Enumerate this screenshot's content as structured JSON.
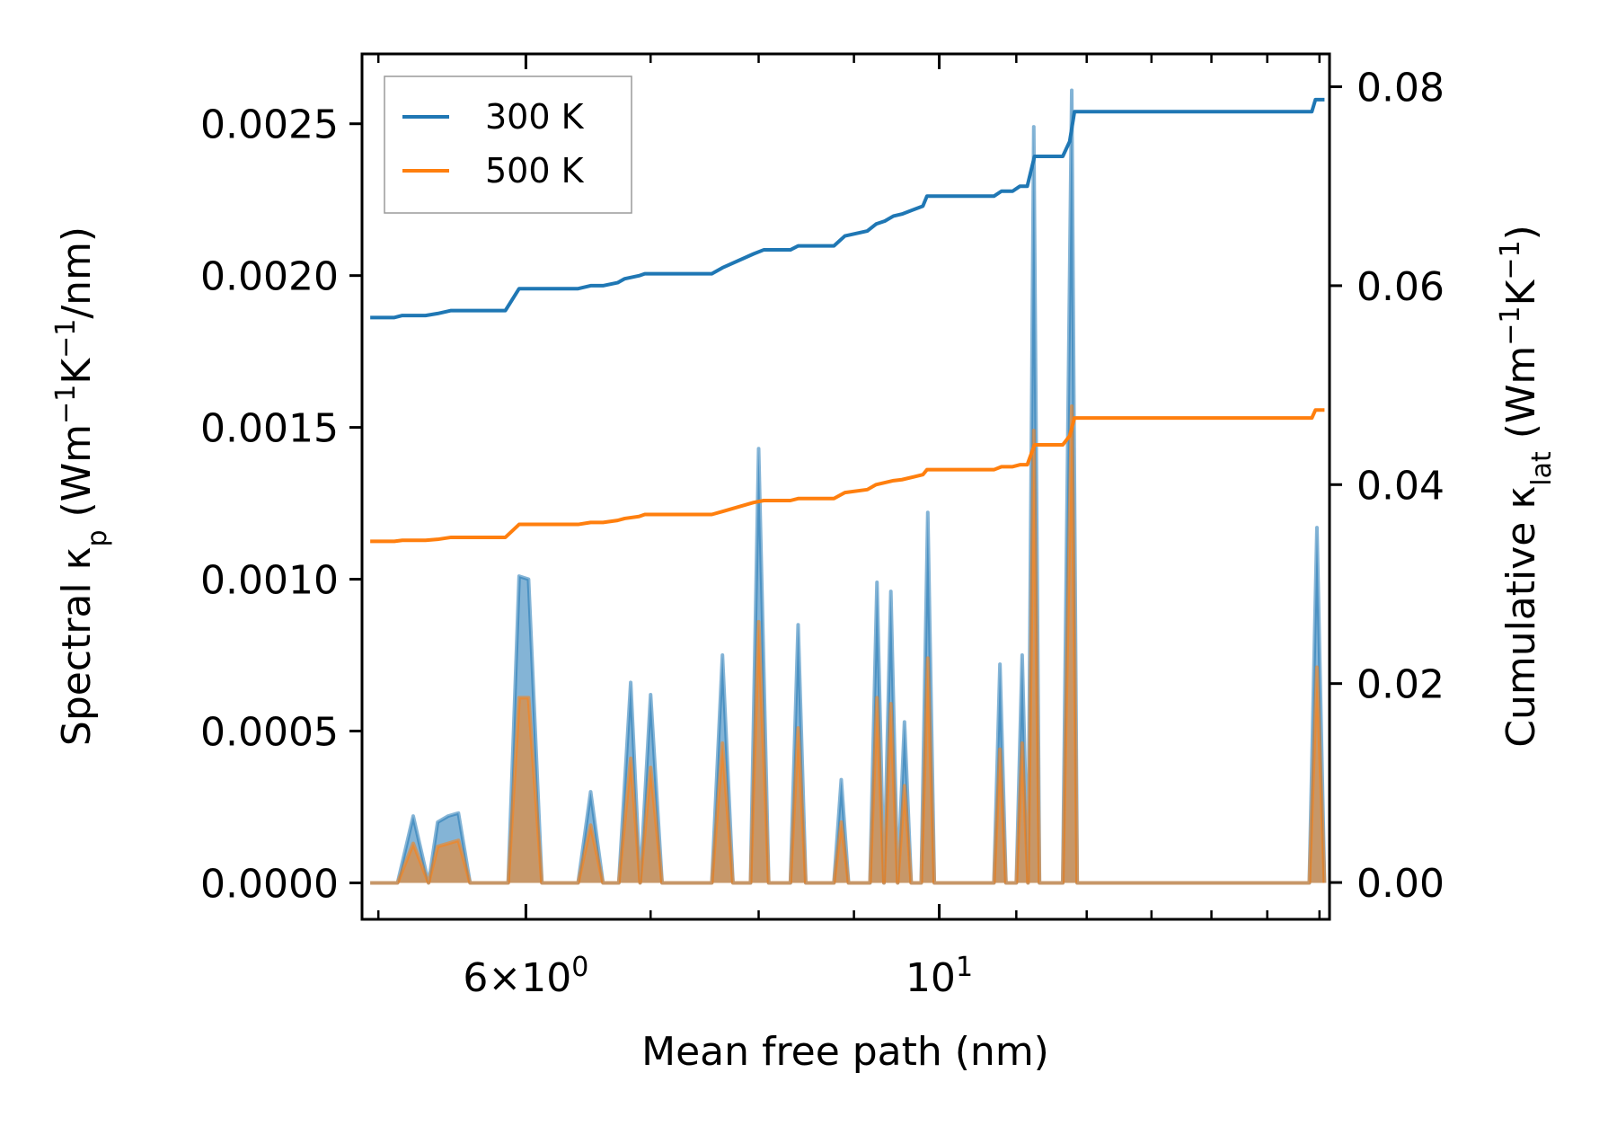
{
  "chart_data": {
    "type": "line",
    "title": "",
    "xlabel": "Mean free path (nm)",
    "xscale": "log",
    "xlim": [
      4.9,
      16.2
    ],
    "x_ticks": [
      {
        "value": 6,
        "base": "6",
        "mult": "×",
        "mant": "10",
        "exp": "0"
      },
      {
        "value": 10,
        "base": "",
        "mult": "",
        "mant": "10",
        "exp": "1"
      }
    ],
    "minor_x_ticks": [
      5,
      7,
      8,
      9,
      11,
      12,
      13,
      14,
      15,
      16
    ],
    "y_left": {
      "label_parts": [
        "Spectral κ",
        "p",
        " (Wm",
        "−1",
        "K",
        "−1",
        "/nm)"
      ],
      "ylim": [
        -0.00012,
        0.00273
      ],
      "ticks": [
        0.0,
        0.0005,
        0.001,
        0.0015,
        0.002,
        0.0025
      ],
      "tick_labels": [
        "0.0000",
        "0.0005",
        "0.0010",
        "0.0015",
        "0.0020",
        "0.0025"
      ]
    },
    "y_right": {
      "label_parts": [
        "Cumulative κ",
        "lat",
        " (Wm",
        "−1",
        "K",
        "−1",
        ")"
      ],
      "ylim": [
        -0.0037,
        0.0833
      ],
      "ticks": [
        0.0,
        0.02,
        0.04,
        0.06,
        0.08
      ],
      "tick_labels": [
        "0.00",
        "0.02",
        "0.04",
        "0.06",
        "0.08"
      ]
    },
    "legend": {
      "position": "top-left",
      "entries": [
        {
          "label": "300 K",
          "color": "#1f77b4"
        },
        {
          "label": "500 K",
          "color": "#ff7f0e"
        }
      ]
    },
    "spectral_series": [
      {
        "name": "300 K",
        "color": "#1f77b4",
        "axis": "left",
        "fill": true,
        "x": [
          4.95,
          5.12,
          5.22,
          5.32,
          5.38,
          5.45,
          5.52,
          5.6,
          5.87,
          5.95,
          6.02,
          6.12,
          6.4,
          6.5,
          6.6,
          6.73,
          6.83,
          6.91,
          7.0,
          7.1,
          7.55,
          7.65,
          7.75,
          7.92,
          8.0,
          8.1,
          8.32,
          8.4,
          8.48,
          8.78,
          8.86,
          8.94,
          9.18,
          9.26,
          9.34,
          9.42,
          9.5,
          9.58,
          9.66,
          9.78,
          9.86,
          9.94,
          10.02,
          10.7,
          10.78,
          10.86,
          11.0,
          11.08,
          11.16,
          11.24,
          11.32,
          11.65,
          11.78,
          11.86,
          11.94,
          12.05,
          15.8,
          15.95,
          16.1
        ],
        "y": [
          0.0,
          0.0,
          0.00022,
          0.0,
          0.0002,
          0.00022,
          0.00023,
          0.0,
          0.0,
          0.00101,
          0.001,
          0.0,
          0.0,
          0.0003,
          0.0,
          0.0,
          0.00066,
          0.0,
          0.00062,
          0.0,
          0.0,
          0.00075,
          0.0,
          0.0,
          0.00143,
          0.0,
          0.0,
          0.00085,
          0.0,
          0.0,
          0.00034,
          0.0,
          0.0,
          0.00099,
          0.0,
          0.00096,
          0.0,
          0.00053,
          0.0,
          0.0,
          0.00122,
          0.0,
          0.0,
          0.0,
          0.00072,
          0.0,
          0.0,
          0.00075,
          0.0,
          0.00249,
          0.0,
          0.0,
          0.00261,
          0.0,
          0.0,
          0.0,
          0.0,
          0.00117,
          0.0
        ]
      },
      {
        "name": "500 K",
        "color": "#ff7f0e",
        "axis": "left",
        "fill": true,
        "x": [
          4.95,
          5.12,
          5.22,
          5.32,
          5.38,
          5.45,
          5.52,
          5.6,
          5.87,
          5.95,
          6.02,
          6.12,
          6.4,
          6.5,
          6.6,
          6.73,
          6.83,
          6.91,
          7.0,
          7.1,
          7.55,
          7.65,
          7.75,
          7.92,
          8.0,
          8.1,
          8.32,
          8.4,
          8.48,
          8.78,
          8.86,
          8.94,
          9.18,
          9.26,
          9.34,
          9.42,
          9.5,
          9.58,
          9.66,
          9.78,
          9.86,
          9.94,
          10.02,
          10.7,
          10.78,
          10.86,
          11.0,
          11.08,
          11.16,
          11.24,
          11.32,
          11.65,
          11.78,
          11.86,
          11.94,
          12.05,
          15.8,
          15.95,
          16.1
        ],
        "y": [
          0.0,
          0.0,
          0.00013,
          0.0,
          0.00012,
          0.00013,
          0.00014,
          0.0,
          0.0,
          0.00061,
          0.00061,
          0.0,
          0.0,
          0.00019,
          0.0,
          0.0,
          0.00041,
          0.0,
          0.00038,
          0.0,
          0.0,
          0.00046,
          0.0,
          0.0,
          0.00086,
          0.0,
          0.0,
          0.00051,
          0.0,
          0.0,
          0.0002,
          0.0,
          0.0,
          0.00061,
          0.0,
          0.00059,
          0.0,
          0.00032,
          0.0,
          0.0,
          0.00074,
          0.0,
          0.0,
          0.0,
          0.00044,
          0.0,
          0.0,
          0.00046,
          0.0,
          0.00149,
          0.0,
          0.0,
          0.00157,
          0.0,
          0.0,
          0.0,
          0.0,
          0.00071,
          0.0
        ]
      }
    ],
    "cumulative_series": [
      {
        "name": "300 K",
        "color": "#1f77b4",
        "axis": "right",
        "x": [
          4.95,
          5.1,
          5.15,
          5.3,
          5.38,
          5.47,
          5.85,
          5.95,
          6.4,
          6.5,
          6.6,
          6.72,
          6.78,
          6.9,
          6.95,
          7.55,
          7.65,
          7.95,
          8.05,
          8.32,
          8.4,
          8.78,
          8.9,
          9.15,
          9.25,
          9.35,
          9.45,
          9.55,
          9.8,
          9.85,
          10.7,
          10.8,
          10.95,
          11.05,
          11.15,
          11.25,
          11.65,
          11.75,
          11.82,
          15.85,
          15.92,
          16.1
        ],
        "y": [
          0.0568,
          0.0568,
          0.057,
          0.057,
          0.0572,
          0.0575,
          0.0575,
          0.0597,
          0.0597,
          0.06,
          0.06,
          0.0603,
          0.0607,
          0.061,
          0.0612,
          0.0612,
          0.0618,
          0.0632,
          0.0636,
          0.0636,
          0.064,
          0.064,
          0.065,
          0.0655,
          0.0662,
          0.0665,
          0.067,
          0.0672,
          0.068,
          0.069,
          0.069,
          0.0695,
          0.0695,
          0.07,
          0.07,
          0.073,
          0.073,
          0.0745,
          0.0775,
          0.0775,
          0.0787,
          0.0787
        ]
      },
      {
        "name": "500 K",
        "color": "#ff7f0e",
        "axis": "right",
        "x": [
          4.95,
          5.1,
          5.15,
          5.3,
          5.38,
          5.47,
          5.85,
          5.95,
          6.4,
          6.5,
          6.6,
          6.72,
          6.78,
          6.9,
          6.95,
          7.55,
          7.65,
          7.95,
          8.05,
          8.32,
          8.4,
          8.78,
          8.9,
          9.15,
          9.25,
          9.35,
          9.45,
          9.55,
          9.8,
          9.85,
          10.7,
          10.8,
          10.95,
          11.05,
          11.15,
          11.25,
          11.65,
          11.75,
          11.82,
          15.85,
          15.92,
          16.1
        ],
        "y": [
          0.0343,
          0.0343,
          0.0344,
          0.0344,
          0.0345,
          0.0347,
          0.0347,
          0.036,
          0.036,
          0.0362,
          0.0362,
          0.0364,
          0.0366,
          0.0368,
          0.037,
          0.037,
          0.0373,
          0.0382,
          0.0384,
          0.0384,
          0.0386,
          0.0386,
          0.0392,
          0.0395,
          0.04,
          0.0402,
          0.0404,
          0.0405,
          0.041,
          0.0415,
          0.0415,
          0.0418,
          0.0418,
          0.042,
          0.042,
          0.044,
          0.044,
          0.0449,
          0.0467,
          0.0467,
          0.0475,
          0.0475
        ]
      }
    ]
  }
}
